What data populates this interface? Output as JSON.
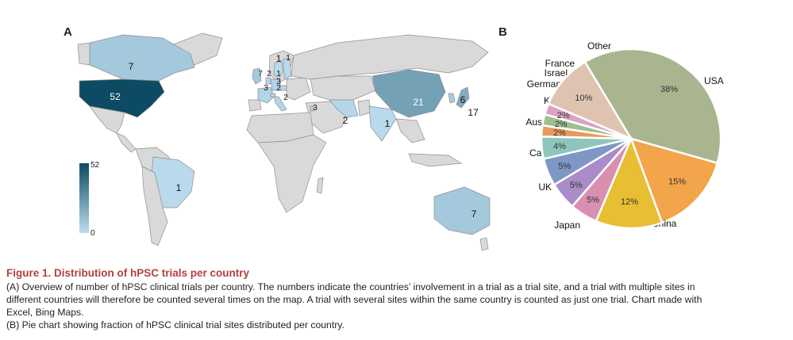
{
  "panels": {
    "a": "A",
    "b": "B"
  },
  "colors": {
    "map_low": "#bcdcef",
    "map_high": "#0d4a63",
    "land": "#d9d9d9",
    "border": "#8f8f8f"
  },
  "colorbar": {
    "max": "52",
    "min": "0"
  },
  "chart_data": [
    {
      "type": "map",
      "title": "",
      "value_range": [
        0,
        52
      ],
      "regions": [
        {
          "name": "USA",
          "value": 52
        },
        {
          "name": "Canada",
          "value": 7
        },
        {
          "name": "Brazil",
          "value": 1
        },
        {
          "name": "China",
          "value": 21
        },
        {
          "name": "Japan",
          "value": 17
        },
        {
          "name": "Korea",
          "value": 6
        },
        {
          "name": "India",
          "value": 1
        },
        {
          "name": "Iran",
          "value": 2
        },
        {
          "name": "Australia",
          "value": 7
        },
        {
          "name": "UK",
          "value": 7
        },
        {
          "name": "Sweden",
          "value": 1
        },
        {
          "name": "Finland",
          "value": 1
        },
        {
          "name": "Germany",
          "value": 3
        },
        {
          "name": "France",
          "value": 3
        },
        {
          "name": "Netherlands",
          "value": 2
        },
        {
          "name": "Czech Republic",
          "value": 1
        },
        {
          "name": "Switzerland",
          "value": 2
        },
        {
          "name": "Italy",
          "value": 2
        },
        {
          "name": "Israel",
          "value": 3
        }
      ],
      "labels": [
        "7",
        "52",
        "1",
        "21",
        "6",
        "17",
        "1",
        "2",
        "7",
        "1",
        "1",
        "7",
        "2",
        "1",
        "3",
        "3",
        "2",
        "2",
        "3"
      ]
    },
    {
      "type": "pie",
      "title": "",
      "slices": [
        {
          "label": "USA",
          "value": 38,
          "pct": "38%",
          "color": "#a8b58f"
        },
        {
          "label": "China",
          "value": 15,
          "pct": "15%",
          "color": "#f2a54a"
        },
        {
          "label": "Japan",
          "value": 12,
          "pct": "12%",
          "color": "#e8bf33"
        },
        {
          "label": "UK",
          "value": 5,
          "pct": "5%",
          "color": "#d98fb0"
        },
        {
          "label": "Canada",
          "value": 5,
          "pct": "5%",
          "color": "#a98cc8"
        },
        {
          "label": "Australia",
          "value": 5,
          "pct": "5%",
          "color": "#7e97c6"
        },
        {
          "label": "Korea",
          "value": 4,
          "pct": "4%",
          "color": "#8ec6be"
        },
        {
          "label": "Germany",
          "value": 2,
          "pct": "2%",
          "color": "#ea9a5e"
        },
        {
          "label": "Israel",
          "value": 2,
          "pct": "2%",
          "color": "#9ebf8f"
        },
        {
          "label": "France",
          "value": 2,
          "pct": "2%",
          "color": "#d8a3c6"
        },
        {
          "label": "Other",
          "value": 10,
          "pct": "10%",
          "color": "#dfc3b1"
        }
      ]
    }
  ],
  "caption": {
    "title": "Figure 1.  Distribution of hPSC trials per country",
    "lines": [
      "(A) Overview of number of hPSC clinical trials per country. The numbers indicate the countries’ involvement in a trial as a trial site, and a trial with multiple sites in",
      "different countries will therefore be counted several times on the map. A trial with several sites within the same country is counted as just one trial. Chart made with",
      "Excel, Bing Maps.",
      "(B) Pie chart showing fraction of hPSC clinical trial sites distributed per country."
    ]
  }
}
